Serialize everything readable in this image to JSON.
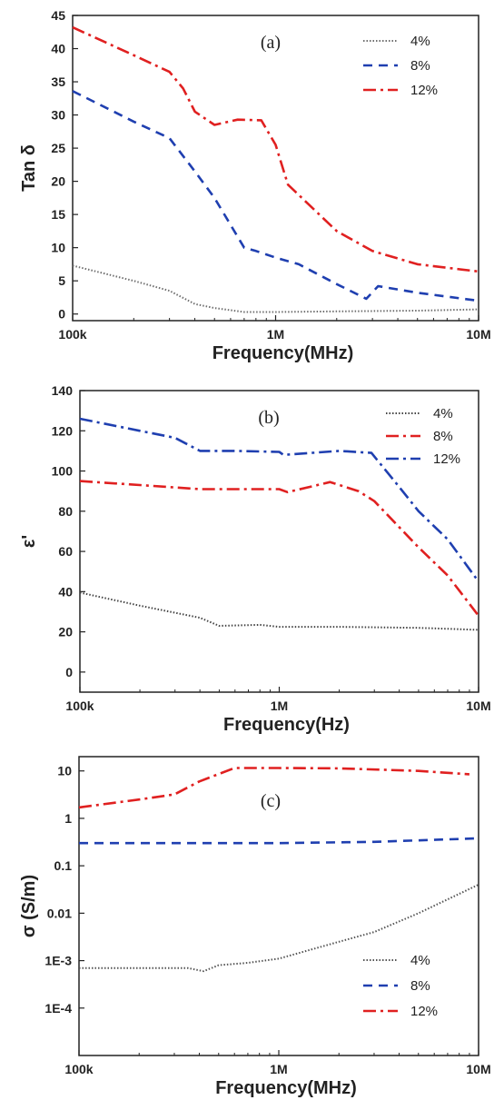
{
  "chart_data": [
    {
      "type": "line",
      "panel_label": "(a)",
      "xlabel": "Frequency(MHz)",
      "ylabel": "Tan δ",
      "x_scale": "log",
      "xlim": [
        100000,
        10000000
      ],
      "x_ticks": [
        {
          "value": 100000,
          "label": "100k"
        },
        {
          "value": 1000000,
          "label": "1M"
        },
        {
          "value": 10000000,
          "label": "10M"
        }
      ],
      "ylim": [
        -1,
        45
      ],
      "y_ticks": [
        {
          "value": 0,
          "label": "0"
        },
        {
          "value": 5,
          "label": "5"
        },
        {
          "value": 10,
          "label": "10"
        },
        {
          "value": 15,
          "label": "15"
        },
        {
          "value": 20,
          "label": "20"
        },
        {
          "value": 25,
          "label": "25"
        },
        {
          "value": 30,
          "label": "30"
        },
        {
          "value": 35,
          "label": "35"
        },
        {
          "value": 40,
          "label": "40"
        },
        {
          "value": 45,
          "label": "45"
        }
      ],
      "legend_position": "top-right",
      "series": [
        {
          "name": "4%",
          "color": "#6f6f6f",
          "dash": "dot",
          "x": [
            100000,
            200000,
            300000,
            400000,
            500000,
            700000,
            1000000,
            2000000,
            5000000,
            10000000
          ],
          "y": [
            7.3,
            5.0,
            3.5,
            1.5,
            0.9,
            0.3,
            0.3,
            0.4,
            0.5,
            0.7
          ]
        },
        {
          "name": "8%",
          "color": "#1f3fb0",
          "dash": "dash",
          "x": [
            100000,
            200000,
            300000,
            400000,
            500000,
            700000,
            800000,
            1000000,
            1300000,
            2000000,
            2800000,
            3200000,
            5000000,
            10000000
          ],
          "y": [
            33.6,
            29.0,
            26.5,
            21.5,
            17.5,
            10.0,
            9.5,
            8.5,
            7.5,
            4.5,
            2.3,
            4.2,
            3.2,
            2.0
          ]
        },
        {
          "name": "12%",
          "color": "#e02020",
          "dash": "dashdot",
          "x": [
            100000,
            200000,
            300000,
            350000,
            400000,
            500000,
            650000,
            850000,
            1000000,
            1150000,
            2000000,
            3000000,
            5000000,
            10000000
          ],
          "y": [
            43.2,
            39.0,
            36.5,
            34.0,
            30.5,
            28.5,
            29.3,
            29.2,
            25.5,
            19.5,
            12.5,
            9.5,
            7.5,
            6.4
          ]
        }
      ]
    },
    {
      "type": "line",
      "panel_label": "(b)",
      "xlabel": "Frequency(Hz)",
      "ylabel": "ε'",
      "x_scale": "log",
      "xlim": [
        100000,
        10000000
      ],
      "x_ticks": [
        {
          "value": 100000,
          "label": "100k"
        },
        {
          "value": 1000000,
          "label": "1M"
        },
        {
          "value": 10000000,
          "label": "10M"
        }
      ],
      "ylim": [
        -10,
        140
      ],
      "y_ticks": [
        {
          "value": 0,
          "label": "0"
        },
        {
          "value": 20,
          "label": "20"
        },
        {
          "value": 40,
          "label": "40"
        },
        {
          "value": 60,
          "label": "60"
        },
        {
          "value": 80,
          "label": "80"
        },
        {
          "value": 100,
          "label": "100"
        },
        {
          "value": 120,
          "label": "120"
        },
        {
          "value": 140,
          "label": "140"
        }
      ],
      "legend_position": "top-right",
      "series": [
        {
          "name": "4%",
          "color": "#444444",
          "dash": "dot",
          "x": [
            100000,
            200000,
            400000,
            500000,
            800000,
            1000000,
            2000000,
            5000000,
            10000000
          ],
          "y": [
            39.5,
            33.0,
            27.0,
            23.0,
            23.5,
            22.5,
            22.5,
            22.0,
            21.0
          ]
        },
        {
          "name": "8%",
          "color": "#e02020",
          "dash": "dashdot",
          "x": [
            100000,
            200000,
            400000,
            600000,
            1000000,
            1100000,
            1800000,
            2500000,
            3000000,
            5000000,
            7000000,
            10000000
          ],
          "y": [
            95.0,
            93.0,
            91.0,
            91.0,
            91.0,
            89.5,
            94.5,
            90.0,
            85.0,
            62.0,
            48.0,
            28.0
          ]
        },
        {
          "name": "12%",
          "color": "#1f3fb0",
          "dash": "dashdot",
          "x": [
            100000,
            200000,
            300000,
            400000,
            600000,
            1000000,
            1050000,
            2000000,
            2900000,
            4000000,
            5000000,
            7000000,
            10000000
          ],
          "y": [
            126.0,
            120.0,
            116.5,
            110.0,
            110.0,
            109.5,
            108.0,
            110.0,
            109.0,
            92.0,
            80.0,
            66.0,
            45.0
          ]
        }
      ]
    },
    {
      "type": "line",
      "panel_label": "(c)",
      "xlabel": "Frequency(MHz)",
      "ylabel": "σ (S/m)",
      "x_scale": "log",
      "y_scale": "log",
      "xlim": [
        100000,
        10000000
      ],
      "x_ticks": [
        {
          "value": 100000,
          "label": "100k"
        },
        {
          "value": 1000000,
          "label": "1M"
        },
        {
          "value": 10000000,
          "label": "10M"
        }
      ],
      "ylim": [
        1e-05,
        20
      ],
      "y_ticks": [
        {
          "value": 10,
          "label": "10"
        },
        {
          "value": 1,
          "label": "1"
        },
        {
          "value": 0.1,
          "label": "0.1"
        },
        {
          "value": 0.01,
          "label": "0.01"
        },
        {
          "value": 0.001,
          "label": "1E-3"
        },
        {
          "value": 0.0001,
          "label": "1E-4"
        }
      ],
      "legend_position": "bottom-right",
      "series": [
        {
          "name": "4%",
          "color": "#555555",
          "dash": "dot",
          "x": [
            100000,
            200000,
            350000,
            420000,
            500000,
            700000,
            1000000,
            2000000,
            3000000,
            5000000,
            10000000
          ],
          "y": [
            0.0007,
            0.0007,
            0.0007,
            0.0006,
            0.0008,
            0.0009,
            0.0011,
            0.0025,
            0.004,
            0.01,
            0.04
          ]
        },
        {
          "name": "8%",
          "color": "#1f3fb0",
          "dash": "dash",
          "x": [
            100000,
            500000,
            1000000,
            3000000,
            10000000
          ],
          "y": [
            0.3,
            0.3,
            0.3,
            0.32,
            0.38
          ]
        },
        {
          "name": "12%",
          "color": "#e02020",
          "dash": "dashdot",
          "x": [
            100000,
            200000,
            300000,
            400000,
            600000,
            1000000,
            2000000,
            5000000,
            9000000
          ],
          "y": [
            1.7,
            2.5,
            3.2,
            6.0,
            11.5,
            11.5,
            11.3,
            10.0,
            8.5
          ]
        }
      ]
    }
  ]
}
